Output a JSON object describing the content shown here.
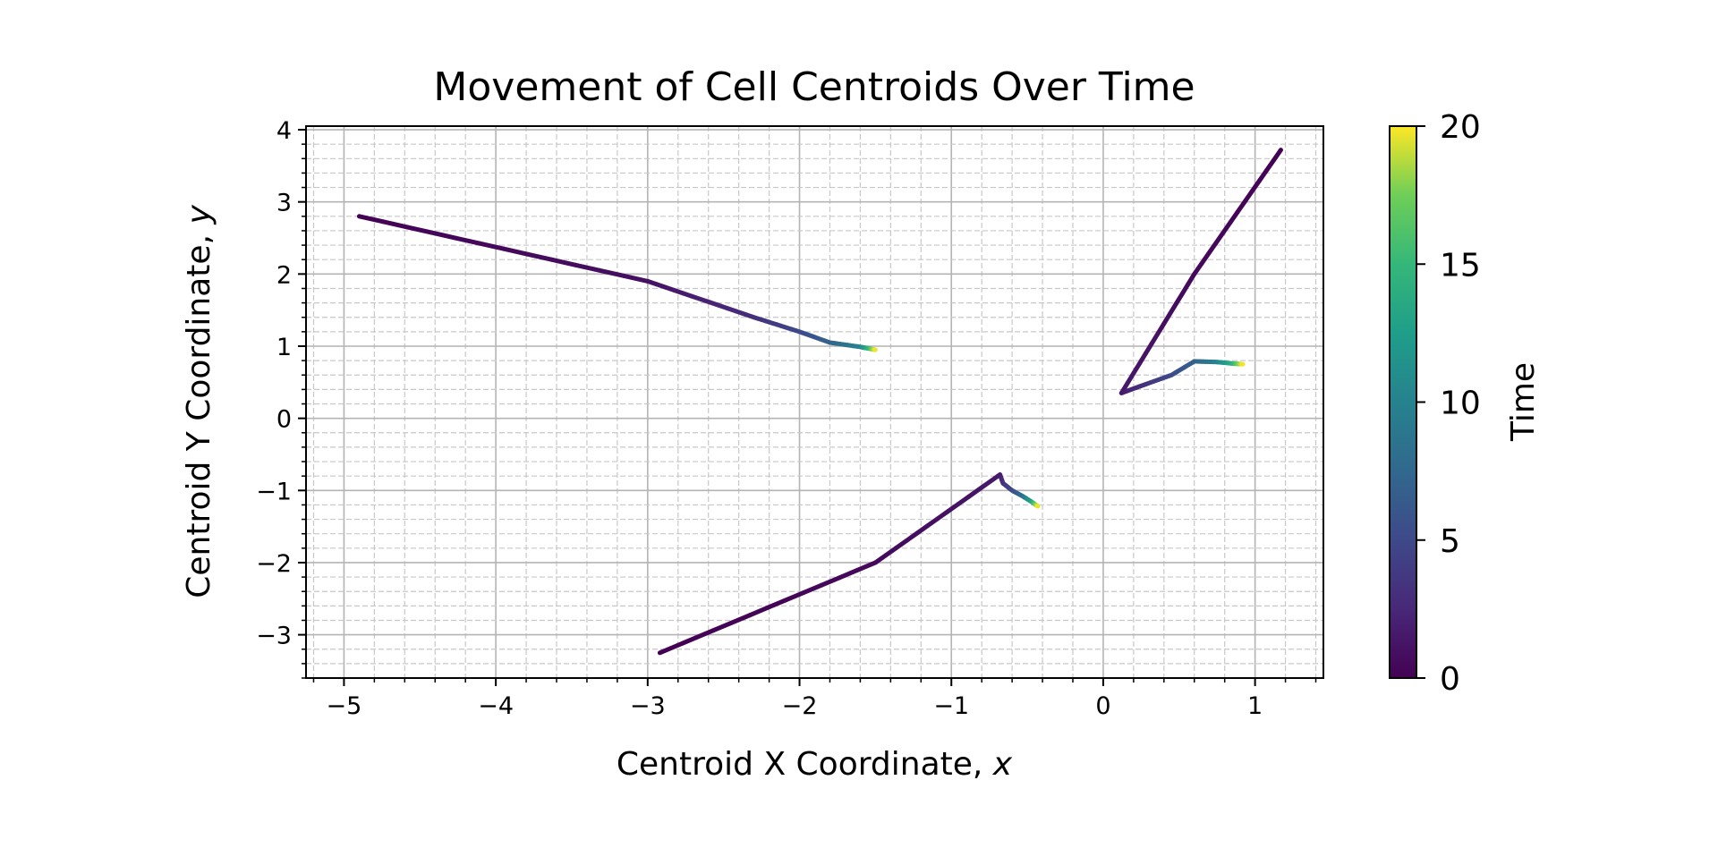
{
  "chart_data": {
    "type": "line",
    "title": "Movement of Cell Centroids Over Time",
    "xlabel": "Centroid X Coordinate, ",
    "xlabel_var": "x",
    "ylabel": "Centroid Y Coordinate, ",
    "ylabel_var": "y",
    "xlim": [
      -5.25,
      1.45
    ],
    "ylim": [
      -3.6,
      4.05
    ],
    "grid": true,
    "minor_grid": true,
    "x_ticks": [
      -5,
      -4,
      -3,
      -2,
      -1,
      0,
      1
    ],
    "y_ticks": [
      -3,
      -2,
      -1,
      0,
      1,
      2,
      3,
      4
    ],
    "x_tick_labels": [
      "−5",
      "−4",
      "−3",
      "−2",
      "−1",
      "0",
      "1"
    ],
    "y_tick_labels": [
      "−3",
      "−2",
      "−1",
      "0",
      "1",
      "2",
      "3",
      "4"
    ],
    "colorbar": {
      "label": "Time",
      "colormap": "viridis",
      "range": [
        0,
        20
      ],
      "ticks": [
        0,
        5,
        10,
        15,
        20
      ],
      "tick_labels": [
        "0",
        "5",
        "10",
        "15",
        "20"
      ]
    },
    "series": [
      {
        "points": [
          {
            "x": -4.9,
            "y": 2.8,
            "t": 0
          },
          {
            "x": -3.0,
            "y": 1.9,
            "t": 1
          },
          {
            "x": -2.3,
            "y": 1.4,
            "t": 3
          },
          {
            "x": -2.0,
            "y": 1.2,
            "t": 5
          },
          {
            "x": -1.8,
            "y": 1.05,
            "t": 7
          },
          {
            "x": -1.6,
            "y": 0.99,
            "t": 10
          },
          {
            "x": -1.55,
            "y": 0.97,
            "t": 14
          },
          {
            "x": -1.5,
            "y": 0.95,
            "t": 20
          }
        ]
      },
      {
        "points": [
          {
            "x": 1.17,
            "y": 3.72,
            "t": 0
          },
          {
            "x": 0.6,
            "y": 2.0,
            "t": 0.5
          },
          {
            "x": 0.12,
            "y": 0.35,
            "t": 1.5
          },
          {
            "x": 0.25,
            "y": 0.45,
            "t": 3
          },
          {
            "x": 0.45,
            "y": 0.6,
            "t": 5
          },
          {
            "x": 0.6,
            "y": 0.79,
            "t": 7
          },
          {
            "x": 0.75,
            "y": 0.78,
            "t": 10
          },
          {
            "x": 0.85,
            "y": 0.76,
            "t": 14
          },
          {
            "x": 0.92,
            "y": 0.75,
            "t": 20
          }
        ]
      },
      {
        "points": [
          {
            "x": -2.92,
            "y": -3.25,
            "t": 0
          },
          {
            "x": -1.5,
            "y": -2.0,
            "t": 0.5
          },
          {
            "x": -0.68,
            "y": -0.78,
            "t": 1.5
          },
          {
            "x": -0.66,
            "y": -0.9,
            "t": 3
          },
          {
            "x": -0.6,
            "y": -1.0,
            "t": 5
          },
          {
            "x": -0.53,
            "y": -1.08,
            "t": 8
          },
          {
            "x": -0.47,
            "y": -1.16,
            "t": 13
          },
          {
            "x": -0.43,
            "y": -1.22,
            "t": 20
          }
        ]
      }
    ]
  }
}
